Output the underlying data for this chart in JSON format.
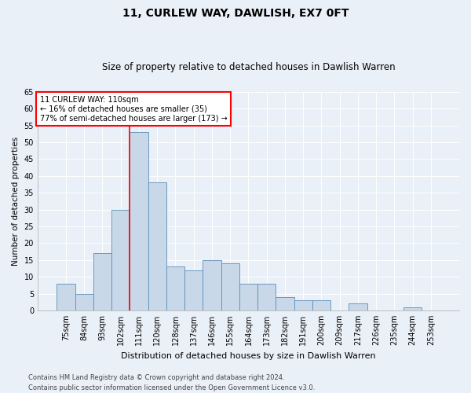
{
  "title": "11, CURLEW WAY, DAWLISH, EX7 0FT",
  "subtitle": "Size of property relative to detached houses in Dawlish Warren",
  "xlabel": "Distribution of detached houses by size in Dawlish Warren",
  "ylabel": "Number of detached properties",
  "categories": [
    "75sqm",
    "84sqm",
    "93sqm",
    "102sqm",
    "111sqm",
    "120sqm",
    "128sqm",
    "137sqm",
    "146sqm",
    "155sqm",
    "164sqm",
    "173sqm",
    "182sqm",
    "191sqm",
    "200sqm",
    "209sqm",
    "217sqm",
    "226sqm",
    "235sqm",
    "244sqm",
    "253sqm"
  ],
  "values": [
    8,
    5,
    17,
    30,
    53,
    38,
    13,
    12,
    15,
    14,
    8,
    8,
    4,
    3,
    3,
    0,
    2,
    0,
    0,
    1,
    0
  ],
  "bar_color": "#c8d8e8",
  "bar_edge_color": "#5b8db8",
  "bar_width": 1.0,
  "vline_index": 4,
  "vline_color": "red",
  "annotation_line1": "11 CURLEW WAY: 110sqm",
  "annotation_line2": "← 16% of detached houses are smaller (35)",
  "annotation_line3": "77% of semi-detached houses are larger (173) →",
  "annotation_box_color": "white",
  "annotation_box_edge_color": "red",
  "ylim": [
    0,
    65
  ],
  "yticks": [
    0,
    5,
    10,
    15,
    20,
    25,
    30,
    35,
    40,
    45,
    50,
    55,
    60,
    65
  ],
  "footnote1": "Contains HM Land Registry data © Crown copyright and database right 2024.",
  "footnote2": "Contains public sector information licensed under the Open Government Licence v3.0.",
  "bg_color": "#eaf0f8",
  "plot_bg_color": "#eaf0f8",
  "title_fontsize": 10,
  "subtitle_fontsize": 8.5,
  "ylabel_fontsize": 7.5,
  "xlabel_fontsize": 8,
  "tick_fontsize": 7,
  "footnote_fontsize": 6
}
